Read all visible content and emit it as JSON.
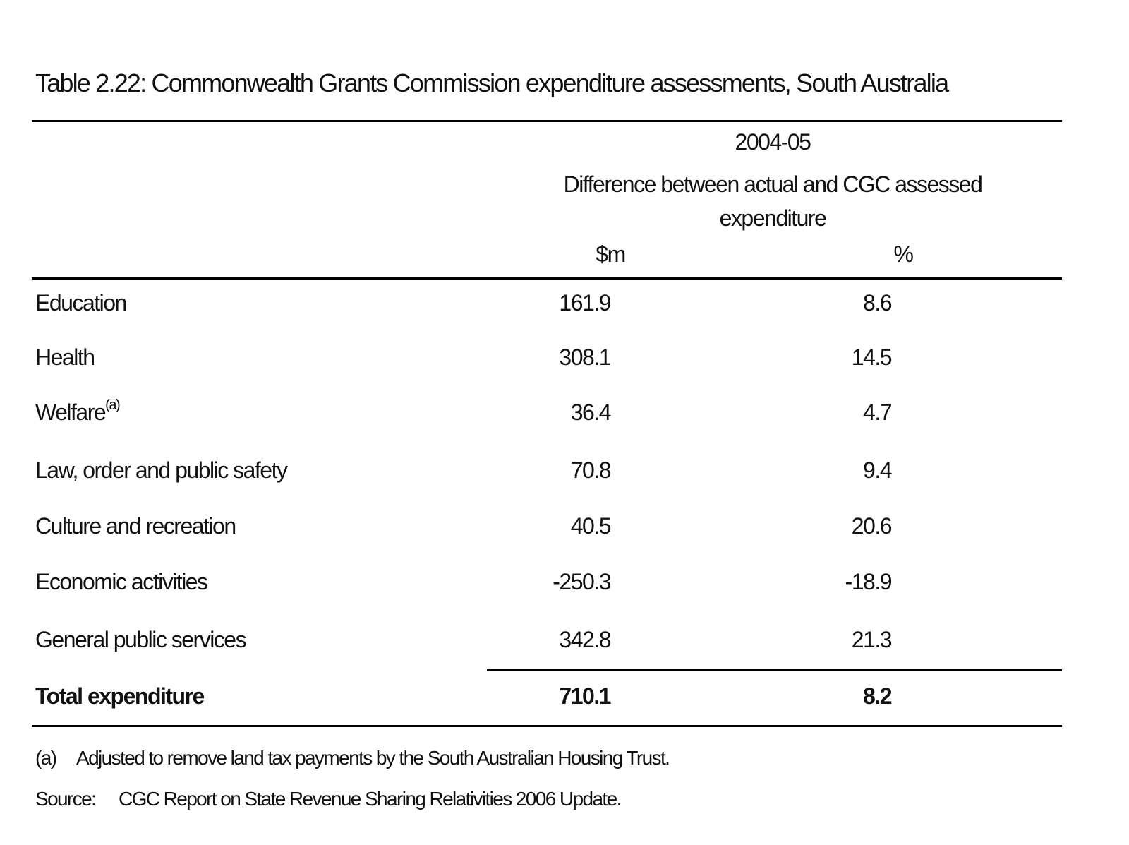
{
  "title": "Table 2.22:  Commonwealth Grants Commission expenditure assessments, South Australia",
  "header": {
    "period": "2004-05",
    "description": "Difference between actual and CGC assessed expenditure",
    "columns": [
      "$m",
      "%"
    ]
  },
  "table": {
    "rows": [
      {
        "label": "Education",
        "values": [
          161.9,
          8.6
        ]
      },
      {
        "label": "Health",
        "values": [
          308.1,
          14.5
        ]
      },
      {
        "label": "Welfare",
        "note": "(a)",
        "values": [
          36.4,
          4.7
        ]
      },
      {
        "label": "Law, order and public safety",
        "values": [
          70.8,
          9.4
        ]
      },
      {
        "label": "Culture and recreation",
        "values": [
          40.5,
          20.6
        ]
      },
      {
        "label": "Economic activities",
        "values": [
          -250.3,
          -18.9
        ]
      },
      {
        "label": "General public services",
        "values": [
          342.8,
          21.3
        ]
      }
    ],
    "total": {
      "label": "Total expenditure",
      "values": [
        710.1,
        8.2
      ]
    }
  },
  "footnotes": [
    {
      "marker": "(a)",
      "text": "Adjusted to remove land tax payments by the South Australian Housing Trust."
    },
    {
      "marker": "Source:",
      "text": "CGC Report on State Revenue Sharing Relativities 2006 Update."
    }
  ]
}
